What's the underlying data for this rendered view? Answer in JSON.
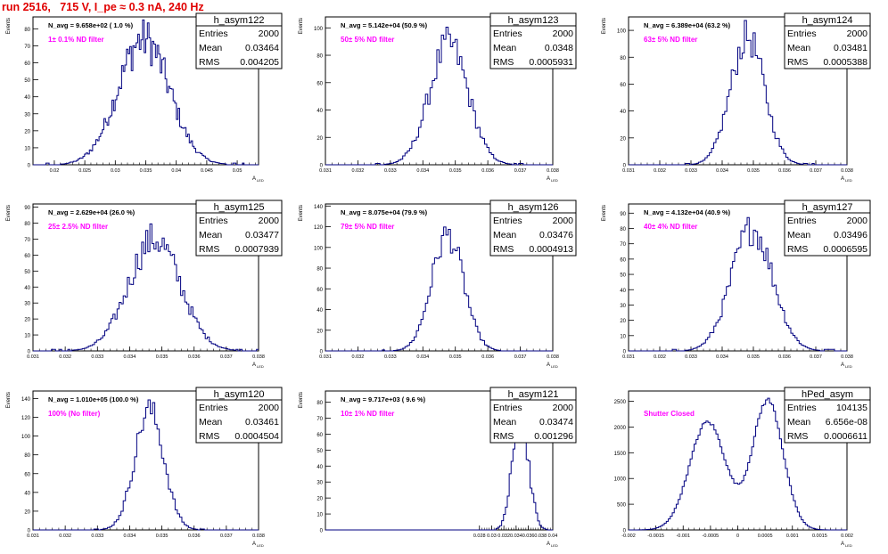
{
  "run_title": "run 2516,   715 V, I_pe ≈ 0.3 nA, 240 Hz",
  "colors": {
    "histogram": "#000080",
    "filter_label": "#ff00ff",
    "title": "#e00000",
    "axis": "#000000"
  },
  "chart_data": [
    {
      "type": "histogram",
      "name": "h_asym122",
      "ylabel": "Events",
      "xlabel": "",
      "navg": "N_avg = 9.658e+02 ( 1.0 %)",
      "filter": "1± 0.1% ND filter",
      "stats": [
        [
          "Entries",
          "2000"
        ],
        [
          "Mean",
          "0.03464"
        ],
        [
          "RMS",
          "0.004205"
        ]
      ],
      "xlim": [
        0.0165,
        0.0535
      ],
      "ylim": [
        0,
        87
      ],
      "xticks": [
        "0.02",
        "0.025",
        "0.03",
        "0.035",
        "0.04",
        "0.045",
        "0.05"
      ],
      "xtick_values": [
        0.02,
        0.025,
        0.03,
        0.035,
        0.04,
        0.045,
        0.05
      ],
      "yticks": [
        0,
        10,
        20,
        30,
        40,
        50,
        60,
        70,
        80
      ],
      "shape": {
        "kind": "gauss",
        "mean": 0.03464,
        "sigma": 0.004205,
        "peak": 74,
        "noise": 0.18,
        "bins": 140
      }
    },
    {
      "type": "histogram",
      "name": "h_asym123",
      "ylabel": "Events",
      "xlabel": "",
      "navg": "N_avg = 5.142e+04 (50.9 %)",
      "filter": "50± 5% ND filter",
      "stats": [
        [
          "Entries",
          "2000"
        ],
        [
          "Mean",
          "0.0348"
        ],
        [
          "RMS",
          "0.0005931"
        ]
      ],
      "xlim": [
        0.031,
        0.038
      ],
      "ylim": [
        0,
        108
      ],
      "xticks": [
        "0.031",
        "0.032",
        "0.033",
        "0.034",
        "0.035",
        "0.036",
        "0.037",
        "0.038"
      ],
      "xtick_values": [
        0.031,
        0.032,
        0.033,
        0.034,
        0.035,
        0.036,
        0.037,
        0.038
      ],
      "yticks": [
        0,
        20,
        40,
        60,
        80,
        100
      ],
      "shape": {
        "kind": "gauss",
        "mean": 0.0348,
        "sigma": 0.000593,
        "peak": 88,
        "noise": 0.15,
        "bins": 100
      }
    },
    {
      "type": "histogram",
      "name": "h_asym124",
      "ylabel": "Events",
      "xlabel": "",
      "navg": "N_avg = 6.389e+04 (63.2 %)",
      "filter": "63± 5% ND filter",
      "stats": [
        [
          "Entries",
          "2000"
        ],
        [
          "Mean",
          "0.03481"
        ],
        [
          "RMS",
          "0.0005388"
        ]
      ],
      "xlim": [
        0.031,
        0.038
      ],
      "ylim": [
        0,
        110
      ],
      "xticks": [
        "0.031",
        "0.032",
        "0.033",
        "0.034",
        "0.035",
        "0.036",
        "0.037",
        "0.038"
      ],
      "xtick_values": [
        0.031,
        0.032,
        0.033,
        0.034,
        0.035,
        0.036,
        0.037,
        0.038
      ],
      "yticks": [
        0,
        20,
        40,
        60,
        80,
        100
      ],
      "shape": {
        "kind": "gauss",
        "mean": 0.03481,
        "sigma": 0.000539,
        "peak": 95,
        "noise": 0.14,
        "bins": 100
      }
    },
    {
      "type": "histogram",
      "name": "h_asym125",
      "ylabel": "Events",
      "xlabel": "",
      "navg": "N_avg = 2.629e+04 (26.0 %)",
      "filter": "25± 2.5% ND filter",
      "stats": [
        [
          "Entries",
          "2000"
        ],
        [
          "Mean",
          "0.03477"
        ],
        [
          "RMS",
          "0.0007939"
        ]
      ],
      "xlim": [
        0.031,
        0.038
      ],
      "ylim": [
        0,
        92
      ],
      "xticks": [
        "0.031",
        "0.032",
        "0.033",
        "0.034",
        "0.035",
        "0.036",
        "0.037",
        "0.038"
      ],
      "xtick_values": [
        0.031,
        0.032,
        0.033,
        0.034,
        0.035,
        0.036,
        0.037,
        0.038
      ],
      "yticks": [
        0,
        10,
        20,
        30,
        40,
        50,
        60,
        70,
        80,
        90
      ],
      "shape": {
        "kind": "gauss",
        "mean": 0.03477,
        "sigma": 0.000794,
        "peak": 70,
        "noise": 0.16,
        "bins": 110
      }
    },
    {
      "type": "histogram",
      "name": "h_asym126",
      "ylabel": "Events",
      "xlabel": "",
      "navg": "N_avg = 8.075e+04 (79.9 %)",
      "filter": "79± 5% ND filter",
      "stats": [
        [
          "Entries",
          "2000"
        ],
        [
          "Mean",
          "0.03476"
        ],
        [
          "RMS",
          "0.0004913"
        ]
      ],
      "xlim": [
        0.031,
        0.038
      ],
      "ylim": [
        0,
        142
      ],
      "xticks": [
        "0.031",
        "0.032",
        "0.033",
        "0.034",
        "0.035",
        "0.036",
        "0.037",
        "0.038"
      ],
      "xtick_values": [
        0.031,
        0.032,
        0.033,
        0.034,
        0.035,
        0.036,
        0.037,
        0.038
      ],
      "yticks": [
        0,
        20,
        40,
        60,
        80,
        100,
        120,
        140
      ],
      "shape": {
        "kind": "gauss",
        "mean": 0.03476,
        "sigma": 0.000491,
        "peak": 112,
        "noise": 0.13,
        "bins": 100
      }
    },
    {
      "type": "histogram",
      "name": "h_asym127",
      "ylabel": "Events",
      "xlabel": "",
      "navg": "N_avg = 4.132e+04 (40.9 %)",
      "filter": "40± 4% ND filter",
      "stats": [
        [
          "Entries",
          "2000"
        ],
        [
          "Mean",
          "0.03496"
        ],
        [
          "RMS",
          "0.0006595"
        ]
      ],
      "xlim": [
        0.031,
        0.038
      ],
      "ylim": [
        0,
        96
      ],
      "xticks": [
        "0.031",
        "0.032",
        "0.033",
        "0.034",
        "0.035",
        "0.036",
        "0.037",
        "0.038"
      ],
      "xtick_values": [
        0.031,
        0.032,
        0.033,
        0.034,
        0.035,
        0.036,
        0.037,
        0.038
      ],
      "yticks": [
        0,
        10,
        20,
        30,
        40,
        50,
        60,
        70,
        80,
        90
      ],
      "shape": {
        "kind": "gauss",
        "mean": 0.03496,
        "sigma": 0.00066,
        "peak": 80,
        "noise": 0.14,
        "bins": 105
      }
    },
    {
      "type": "histogram",
      "name": "h_asym120",
      "ylabel": "Events",
      "xlabel": "",
      "navg": "N_avg = 1.010e+05 (100.0 %)",
      "filter": "100% (No filter)",
      "stats": [
        [
          "Entries",
          "2000"
        ],
        [
          "Mean",
          "0.03461"
        ],
        [
          "RMS",
          "0.0004504"
        ]
      ],
      "xlim": [
        0.031,
        0.038
      ],
      "ylim": [
        0,
        148
      ],
      "xticks": [
        "0.031",
        "0.032",
        "0.033",
        "0.034",
        "0.035",
        "0.036",
        "0.037",
        "0.038"
      ],
      "xtick_values": [
        0.031,
        0.032,
        0.033,
        0.034,
        0.035,
        0.036,
        0.037,
        0.038
      ],
      "yticks": [
        0,
        20,
        40,
        60,
        80,
        100,
        120,
        140
      ],
      "shape": {
        "kind": "gauss",
        "mean": 0.03461,
        "sigma": 0.00045,
        "peak": 128,
        "noise": 0.12,
        "bins": 100
      }
    },
    {
      "type": "histogram",
      "name": "h_asym121",
      "ylabel": "Events",
      "xlabel": "",
      "navg": "N_avg = 9.717e+03 ( 9.6 %)",
      "filter": "10± 1% ND filter",
      "stats": [
        [
          "Entries",
          "2000"
        ],
        [
          "Mean",
          "0.03474"
        ],
        [
          "RMS",
          "0.001296"
        ]
      ],
      "xlim": [
        0.0028,
        0.04
      ],
      "ylim": [
        0,
        87
      ],
      "xticks": [
        "0.028",
        "0.03",
        "0.032",
        "0.034",
        "0.036",
        "0.038",
        "0.04"
      ],
      "xtick_values": [
        0.028,
        0.03,
        0.032,
        0.034,
        0.036,
        0.038,
        0.04
      ],
      "yticks": [
        0,
        10,
        20,
        30,
        40,
        50,
        60,
        70,
        80
      ],
      "shape": {
        "kind": "gauss",
        "mean": 0.03474,
        "sigma": 0.001296,
        "peak": 74,
        "noise": 0.17,
        "bins": 120
      }
    },
    {
      "type": "histogram",
      "name": "hPed_asym",
      "ylabel": "",
      "xlabel": "",
      "navg": "",
      "filter": "Shutter Closed",
      "stats": [
        [
          "Entries",
          "104135"
        ],
        [
          "Mean",
          "6.656e-08"
        ],
        [
          "RMS",
          "0.0006611"
        ]
      ],
      "xlim": [
        -0.002,
        0.002
      ],
      "ylim": [
        0,
        2700
      ],
      "xticks": [
        "-0.002",
        "-0.0015",
        "-0.001",
        "-0.0005",
        "0",
        "0.0005",
        "0.001",
        "0.0015",
        "0.002"
      ],
      "xtick_values": [
        -0.002,
        -0.0015,
        -0.001,
        -0.0005,
        0,
        0.0005,
        0.001,
        0.0015,
        0.002
      ],
      "yticks": [
        0,
        500,
        1000,
        1500,
        2000,
        2500
      ],
      "shape": {
        "kind": "double",
        "m1": -0.00055,
        "m2": 0.00055,
        "s1": 0.00033,
        "s2": 0.00028,
        "a1": 2100,
        "a2": 2520,
        "noise": 0.02,
        "bins": 110
      }
    }
  ]
}
